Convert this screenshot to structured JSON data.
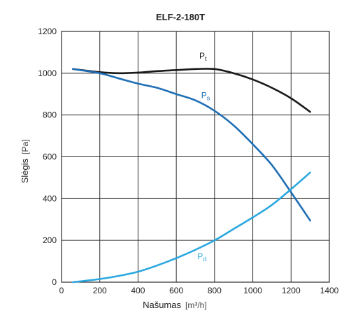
{
  "chart_data": {
    "type": "line",
    "title": "ELF-2-180T",
    "xlabel": "Našumas",
    "xunit": "[m³/h]",
    "ylabel": "Slėgis",
    "yunit": "[Pa]",
    "xlim": [
      0,
      1400
    ],
    "ylim": [
      0,
      1200
    ],
    "xticks": [
      "0",
      "200",
      "400",
      "600",
      "800",
      "1000",
      "1200",
      "1400"
    ],
    "yticks": [
      "0",
      "200",
      "400",
      "600",
      "800",
      "1000",
      "1200"
    ],
    "grid": true,
    "series": [
      {
        "label_main": "P",
        "label_sub": "t",
        "color": "#1a1a1a",
        "x": [
          60,
          200,
          300,
          400,
          500,
          600,
          700,
          800,
          900,
          1000,
          1100,
          1200,
          1300
        ],
        "y": [
          1020,
          1005,
          1000,
          1003,
          1010,
          1015,
          1020,
          1020,
          1000,
          970,
          930,
          880,
          815
        ]
      },
      {
        "label_main": "P",
        "label_sub": "s",
        "color": "#1f6fb5",
        "x": [
          60,
          200,
          300,
          400,
          500,
          600,
          700,
          800,
          900,
          1000,
          1100,
          1200,
          1300
        ],
        "y": [
          1020,
          1000,
          975,
          950,
          930,
          900,
          870,
          820,
          750,
          660,
          560,
          430,
          295
        ]
      },
      {
        "label_main": "P",
        "label_sub": "d",
        "color": "#2aa8e0",
        "x": [
          60,
          200,
          300,
          400,
          500,
          600,
          700,
          800,
          900,
          1000,
          1100,
          1200,
          1300
        ],
        "y": [
          0,
          15,
          30,
          50,
          80,
          115,
          155,
          200,
          255,
          310,
          370,
          445,
          525
        ]
      }
    ]
  }
}
